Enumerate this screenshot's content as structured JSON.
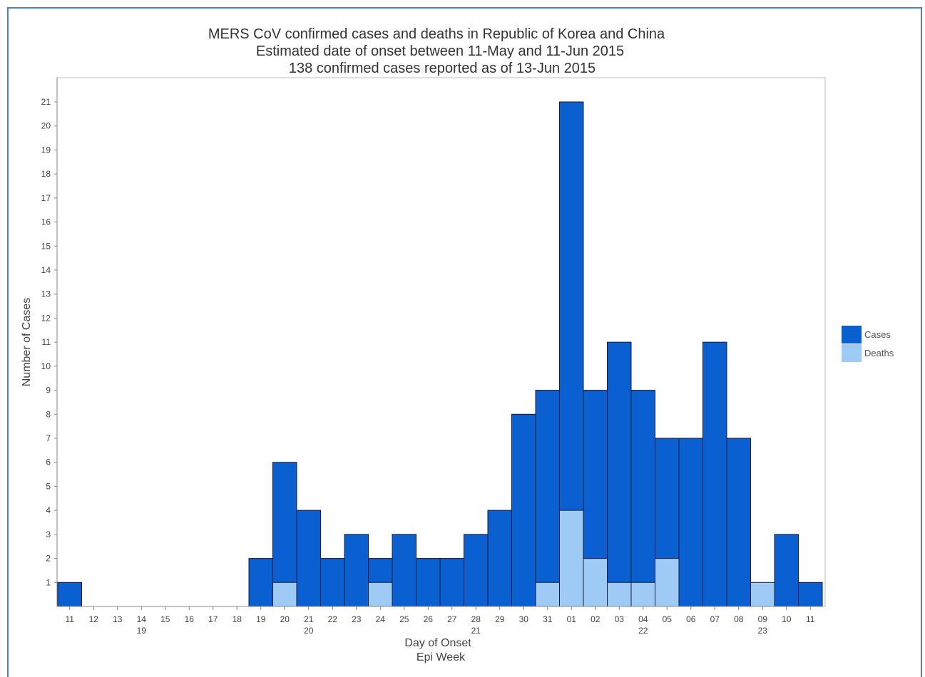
{
  "chart_data": {
    "type": "bar",
    "stacked": "overlay",
    "title": [
      "MERS CoV confirmed cases and deaths in Republic of Korea and China",
      "Estimated date of onset between 11-May and 11-Jun 2015",
      "138 confirmed cases reported as of 13-Jun 2015"
    ],
    "xlabel": [
      "Day of Onset",
      "Epi Week"
    ],
    "ylabel": "Number of Cases",
    "ylim": [
      0,
      21
    ],
    "y_ticks": [
      1,
      2,
      3,
      4,
      5,
      6,
      7,
      8,
      9,
      10,
      11,
      12,
      13,
      14,
      15,
      16,
      17,
      18,
      19,
      20,
      21
    ],
    "grid": false,
    "legend_position": "right",
    "categories": [
      "11",
      "12",
      "13",
      "14",
      "15",
      "16",
      "17",
      "18",
      "19",
      "20",
      "21",
      "22",
      "23",
      "24",
      "25",
      "26",
      "27",
      "28",
      "29",
      "30",
      "31",
      "01",
      "02",
      "03",
      "04",
      "05",
      "06",
      "07",
      "08",
      "09",
      "10",
      "11"
    ],
    "epi_weeks": [
      {
        "label": "19",
        "day_index": 3
      },
      {
        "label": "20",
        "day_index": 10
      },
      {
        "label": "21",
        "day_index": 17
      },
      {
        "label": "22",
        "day_index": 24
      },
      {
        "label": "23",
        "day_index": 29
      }
    ],
    "series": [
      {
        "name": "Cases",
        "color": "#0a5fd1",
        "values": [
          1,
          0,
          0,
          0,
          0,
          0,
          0,
          0,
          2,
          6,
          4,
          2,
          3,
          2,
          3,
          2,
          2,
          3,
          4,
          8,
          9,
          21,
          9,
          11,
          9,
          7,
          7,
          11,
          7,
          0,
          3,
          1
        ]
      },
      {
        "name": "Deaths",
        "color": "#9ecbf5",
        "values": [
          0,
          0,
          0,
          0,
          0,
          0,
          0,
          0,
          0,
          1,
          0,
          0,
          0,
          1,
          0,
          0,
          0,
          0,
          0,
          0,
          1,
          4,
          2,
          1,
          1,
          2,
          0,
          0,
          0,
          1,
          0,
          0
        ]
      }
    ]
  }
}
